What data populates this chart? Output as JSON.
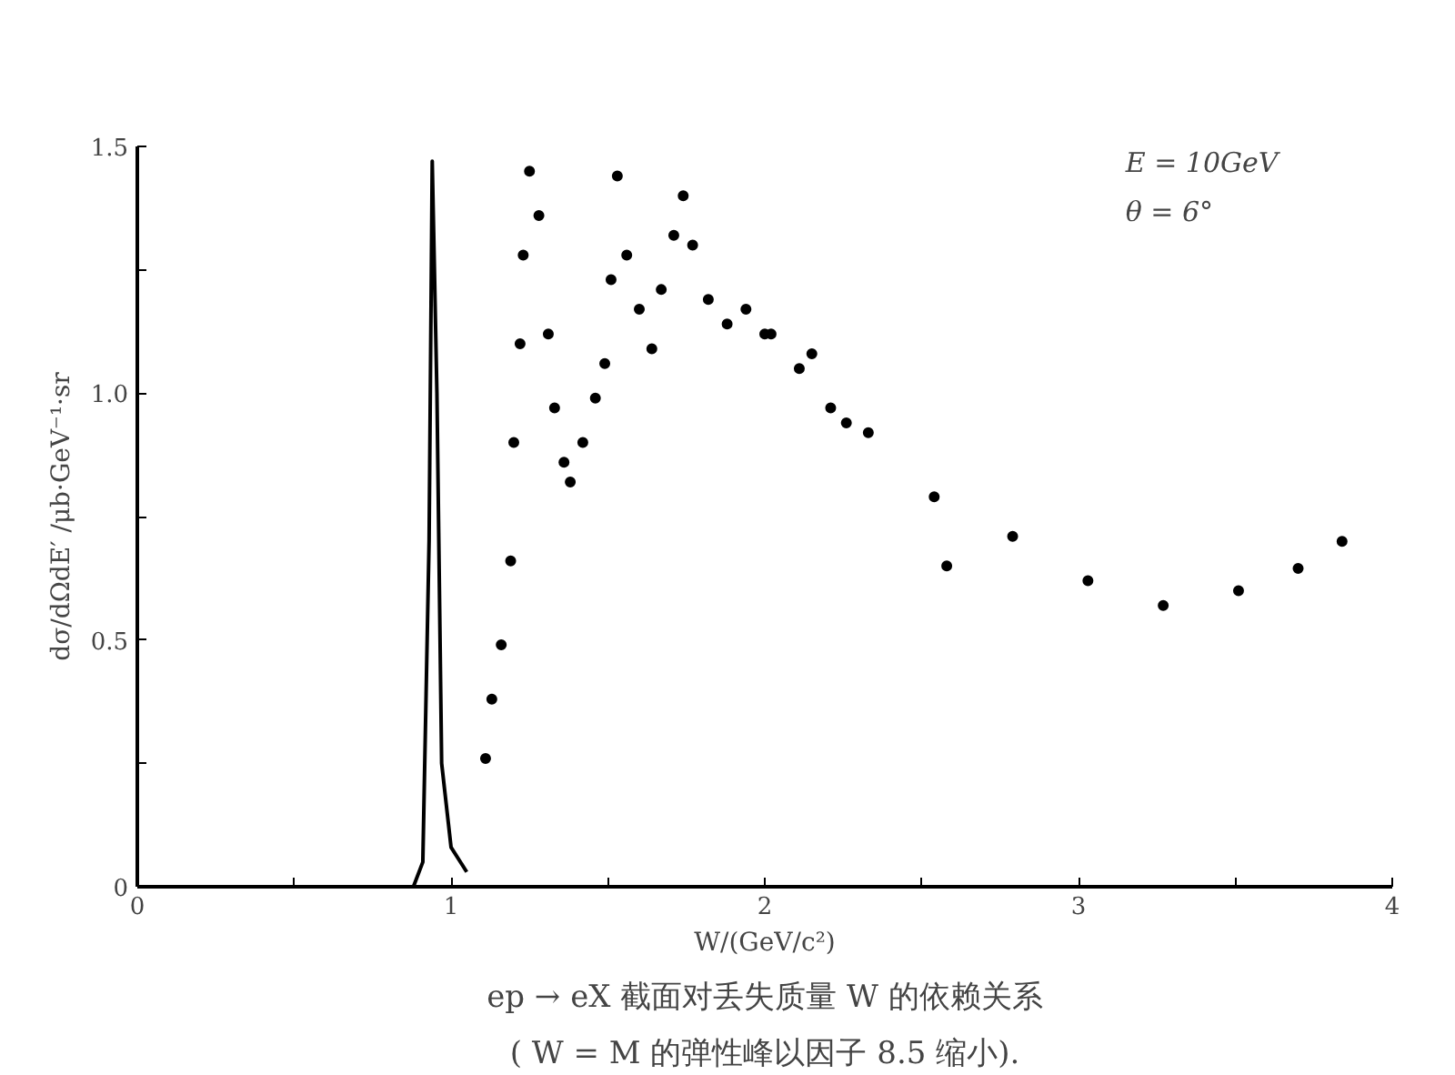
{
  "chart_data": {
    "type": "scatter",
    "title": "ep → eX 截面对丢失质量 W 的依赖关系",
    "subtitle": "( W = M 的弹性峰以因子 8.5 缩小).",
    "xlabel": "W/(GeV/c²)",
    "ylabel": "dσ/dΩdE′ /μb·GeV⁻¹·sr",
    "annotations": [
      "E = 10GeV",
      "θ = 6°"
    ],
    "xlim": [
      0,
      4
    ],
    "ylim": [
      0,
      1.5
    ],
    "xticks": [
      0,
      {
        "value": 0.5,
        "label": null
      },
      1,
      {
        "value": 1.5,
        "label": null
      },
      2,
      {
        "value": 2.5,
        "label": null
      },
      3,
      {
        "value": 3.5,
        "label": null
      },
      4
    ],
    "yticks": [
      0,
      {
        "value": 0.25,
        "label": null
      },
      0.5,
      {
        "value": 0.75,
        "label": null
      },
      {
        "value": 1.0,
        "label": "1.0"
      },
      {
        "value": 1.25,
        "label": null
      },
      1.5
    ],
    "grid": false,
    "series": [
      {
        "type": "line",
        "color": "#000000",
        "x": [
          0.88,
          0.91,
          0.93,
          0.94,
          0.955,
          0.97,
          1.0,
          1.05
        ],
        "values": [
          0,
          0.05,
          0.7,
          1.47,
          1.0,
          0.25,
          0.08,
          0.03
        ]
      },
      {
        "marker": "circle",
        "color": "#000000",
        "x": [
          1.11,
          1.13,
          1.16,
          1.19,
          1.2,
          1.22,
          1.23,
          1.25,
          1.28,
          1.31,
          1.33,
          1.36,
          1.38,
          1.42,
          1.46,
          1.49,
          1.51,
          1.53,
          1.56,
          1.6,
          1.64,
          1.67,
          1.71,
          1.74,
          1.77,
          1.82,
          1.88,
          1.94,
          2.0,
          2.02,
          2.11,
          2.15,
          2.21,
          2.26,
          2.33,
          2.54,
          2.58,
          2.79,
          3.03,
          3.27,
          3.51,
          3.7,
          3.84
        ],
        "values": [
          0.26,
          0.38,
          0.49,
          0.66,
          0.9,
          1.1,
          1.28,
          1.45,
          1.36,
          1.12,
          0.97,
          0.86,
          0.82,
          0.9,
          0.99,
          1.06,
          1.23,
          1.44,
          1.28,
          1.17,
          1.09,
          1.21,
          1.32,
          1.4,
          1.3,
          1.19,
          1.14,
          1.17,
          1.12,
          1.12,
          1.05,
          1.08,
          0.97,
          0.94,
          0.92,
          0.79,
          0.65,
          0.71,
          0.62,
          0.57,
          0.6,
          0.645,
          0.7
        ]
      }
    ]
  }
}
